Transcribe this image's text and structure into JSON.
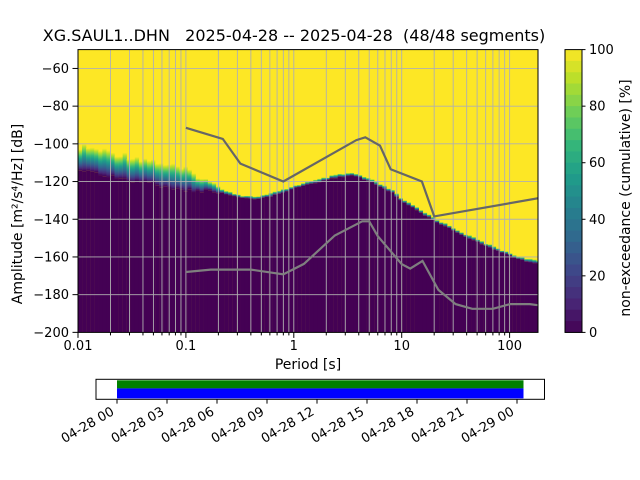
{
  "figure": {
    "title": "XG.SAUL1..DHN   2025-04-28 -- 2025-04-28  (48/48 segments)",
    "xlabel": "Period [s]",
    "ylabel": "Amplitude [m²/s⁴/Hz] [dB]",
    "colorbar_label": "non-exceedance (cumulative) [%]"
  },
  "chart_data": {
    "type": "heatmap",
    "title": "XG.SAUL1..DHN   2025-04-28 -- 2025-04-28  (48/48 segments)",
    "xlabel": "Period [s]",
    "ylabel": "Amplitude [m2/s4/Hz] [dB]",
    "xscale": "log",
    "xlim": [
      0.01,
      183
    ],
    "ylim": [
      -200,
      -50
    ],
    "xticks": [
      0.01,
      0.1,
      1,
      10,
      100
    ],
    "xtick_labels": [
      "0.01",
      "0.1",
      "1",
      "10",
      "100"
    ],
    "yticks": [
      -60,
      -80,
      -100,
      -120,
      -140,
      -160,
      -180,
      -200
    ],
    "ytick_labels": [
      "−60",
      "−80",
      "−100",
      "−120",
      "−140",
      "−160",
      "−180",
      "−200"
    ],
    "grid": true,
    "colorbar": {
      "label": "non-exceedance (cumulative) [%]",
      "ticks": [
        0,
        20,
        40,
        60,
        80,
        100
      ],
      "tick_labels": [
        "0",
        "20",
        "40",
        "60",
        "80",
        "100"
      ],
      "cmap": "viridis",
      "steps": 25
    },
    "viridis_stops": [
      [
        0.0,
        "#440154"
      ],
      [
        0.111,
        "#482878"
      ],
      [
        0.222,
        "#3e4989"
      ],
      [
        0.333,
        "#31688e"
      ],
      [
        0.444,
        "#26828e"
      ],
      [
        0.556,
        "#1f9e89"
      ],
      [
        0.667,
        "#35b779"
      ],
      [
        0.778,
        "#6ece58"
      ],
      [
        0.889,
        "#b5de2b"
      ],
      [
        1.0,
        "#fde725"
      ]
    ],
    "distribution": {
      "description": "Cumulative PPSD histogram: for each period, dB of 0% (min_db) and 100% (max_db) non-exceedance; below min_db 0% (dark purple), above max_db 100% (yellow)",
      "periods": [
        0.01,
        0.0144,
        0.0198,
        0.0303,
        0.0465,
        0.0682,
        0.1,
        0.13,
        0.167,
        0.216,
        0.273,
        0.338,
        0.41,
        0.507,
        0.628,
        0.778,
        0.962,
        1.19,
        1.48,
        1.83,
        2.26,
        2.8,
        3.46,
        4.29,
        5.31,
        6.57,
        8.13,
        10.1,
        12.5,
        15.4,
        19.1,
        23.6,
        29.3,
        36.2,
        44.8,
        55.5,
        68.7,
        85.0,
        105.0,
        130.0,
        155.0,
        183.0
      ],
      "max_db": [
        -101.1,
        -102.7,
        -104.3,
        -106.4,
        -108.6,
        -110.9,
        -113.9,
        -117.0,
        -120.2,
        -123.4,
        -126.1,
        -127.4,
        -127.9,
        -127.4,
        -126.1,
        -124.5,
        -122.6,
        -121.0,
        -119.7,
        -118.4,
        -117.0,
        -116.0,
        -115.5,
        -117.0,
        -119.2,
        -121.8,
        -124.5,
        -129.3,
        -132.4,
        -135.6,
        -138.5,
        -141.5,
        -144.1,
        -146.8,
        -149.4,
        -151.8,
        -154.2,
        -156.3,
        -158.4,
        -160.3,
        -161.3,
        -162.1
      ],
      "min_db": [
        -113.9,
        -115.6,
        -117.0,
        -119.2,
        -121.3,
        -123.3,
        -125.0,
        -125.0,
        -125.1,
        -126.1,
        -127.9,
        -128.8,
        -129.5,
        -128.8,
        -127.7,
        -125.9,
        -124.0,
        -122.4,
        -121.0,
        -119.8,
        -118.4,
        -117.4,
        -116.9,
        -118.4,
        -120.6,
        -123.2,
        -125.9,
        -130.7,
        -133.8,
        -137.0,
        -139.9,
        -142.9,
        -145.5,
        -148.2,
        -150.8,
        -153.2,
        -155.6,
        -157.7,
        -159.8,
        -161.7,
        -162.7,
        -163.5
      ]
    },
    "noise_models": {
      "description": "Peterson (1993) New High/Low Noise Models, acceleration PSD dB",
      "nhnm": [
        [
          0.1,
          -91.5
        ],
        [
          0.22,
          -97.4
        ],
        [
          0.32,
          -110.5
        ],
        [
          0.8,
          -120.0
        ],
        [
          3.8,
          -98.0
        ],
        [
          4.6,
          -96.5
        ],
        [
          6.3,
          -101.0
        ],
        [
          7.9,
          -113.5
        ],
        [
          15.4,
          -120.0
        ],
        [
          20.0,
          -138.5
        ],
        [
          354.8,
          -126.0
        ]
      ],
      "nlnm": [
        [
          0.1,
          -168.0
        ],
        [
          0.17,
          -166.7
        ],
        [
          0.4,
          -166.7
        ],
        [
          0.8,
          -169.2
        ],
        [
          1.24,
          -163.7
        ],
        [
          2.4,
          -148.6
        ],
        [
          4.3,
          -141.1
        ],
        [
          5.0,
          -141.1
        ],
        [
          6.0,
          -149.0
        ],
        [
          10.0,
          -163.8
        ],
        [
          12.0,
          -166.2
        ],
        [
          15.6,
          -162.1
        ],
        [
          21.9,
          -177.5
        ],
        [
          31.6,
          -185.0
        ],
        [
          45.0,
          -187.5
        ],
        [
          70.0,
          -187.5
        ],
        [
          101.0,
          -185.0
        ],
        [
          154.0,
          -185.0
        ],
        [
          328.0,
          -187.5
        ]
      ],
      "color_nhnm": "#666666",
      "color_nlnm": "#7f7f7f"
    },
    "colors": {
      "background": "#ffffff",
      "grid": "#b0b0b0",
      "cmap_top": "#fde725",
      "cmap_bottom": "#440154",
      "spine": "#000000"
    },
    "legend": null
  },
  "timeline": {
    "description": "data coverage bar, 2025-04-28 00:00 to 2025-04-29 00:00, ticks every 3 h",
    "tick_labels": [
      "04-28 00",
      "04-28 03",
      "04-28 06",
      "04-28 09",
      "04-28 12",
      "04-28 15",
      "04-28 18",
      "04-28 21",
      "04-29 00"
    ],
    "coverage_color": "#008000",
    "extent_color": "#0000ff"
  }
}
